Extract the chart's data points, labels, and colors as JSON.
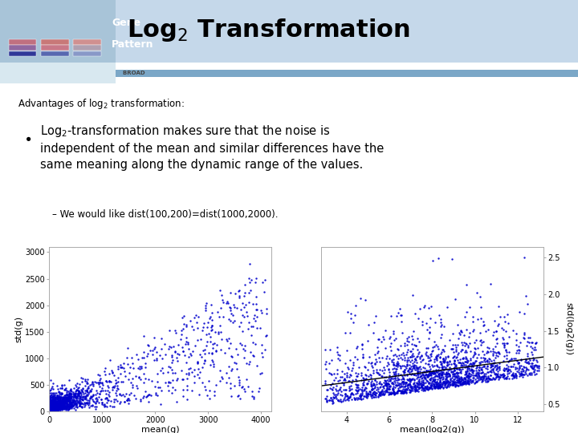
{
  "title": "Log$_2$ Transformation",
  "title_fontsize": 22,
  "title_color": "#000000",
  "advantages_text": "Advantages of log$_2$ transformation:",
  "bullet_line1": "Log$_2$-transformation makes sure that the noise is",
  "bullet_line2": "independent of the mean and similar differences have the",
  "bullet_line3": "same meaning along the dynamic range of the values.",
  "subbullet_text": "– We would like dist(100,200)=dist(1000,2000).",
  "plot1_xlabel": "mean(g)",
  "plot1_ylabel": "std(g)",
  "plot1_xlim": [
    0,
    4200
  ],
  "plot1_ylim": [
    0,
    3100
  ],
  "plot1_xticks": [
    0,
    1000,
    2000,
    3000,
    4000
  ],
  "plot1_yticks": [
    0,
    500,
    1000,
    1500,
    2000,
    2500,
    3000
  ],
  "plot2_xlabel": "mean(log2(g))",
  "plot2_ylabel": "std(log2(g))",
  "plot2_xlim": [
    2.8,
    13.2
  ],
  "plot2_ylim": [
    0.4,
    2.65
  ],
  "plot2_xticks": [
    4,
    6,
    8,
    10,
    12
  ],
  "plot2_yticks": [
    0.5,
    1.0,
    1.5,
    2.0,
    2.5
  ],
  "dot_color": "#0000cc",
  "dot_size": 3,
  "n_points": 2000,
  "bg_color": "#ffffff",
  "header_bg": "#c5d8ea",
  "logo_box_bg": "#a8c4d8",
  "subheader_bg": "#d8e8f0",
  "line_color": "#7ba7c7",
  "logo_colors_top": [
    "#c07080",
    "#d09090",
    "#c08090"
  ],
  "logo_colors_mid": [
    "#a070a0",
    "#d08090",
    "#b0a0b0"
  ],
  "logo_colors_bot": [
    "#4040a0",
    "#6070b0",
    "#8090c0"
  ]
}
